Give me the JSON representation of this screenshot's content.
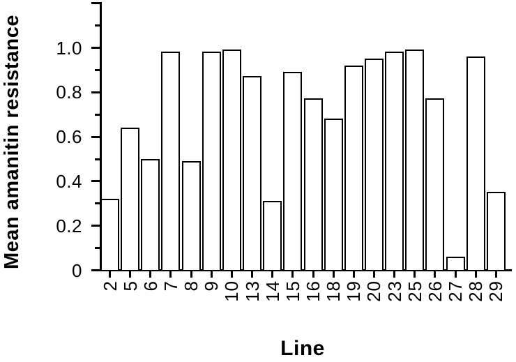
{
  "figure": {
    "background_color": "#ffffff",
    "ink_color": "#000000"
  },
  "chart_data": {
    "type": "bar",
    "title": "",
    "xlabel": "Line",
    "ylabel": "Mean amanitin resistance",
    "categories": [
      "2",
      "5",
      "6",
      "7",
      "8",
      "9",
      "10",
      "13",
      "14",
      "15",
      "16",
      "18",
      "19",
      "20",
      "23",
      "25",
      "26",
      "27",
      "28",
      "29"
    ],
    "values": [
      0.32,
      0.64,
      0.5,
      0.98,
      0.49,
      0.98,
      0.99,
      0.87,
      0.31,
      0.89,
      0.77,
      0.68,
      0.92,
      0.95,
      0.98,
      0.99,
      0.77,
      0.06,
      0.96,
      0.35
    ],
    "ylim": [
      0,
      1.2
    ],
    "y_tick_values": [
      0,
      0.2,
      0.4,
      0.6,
      0.8,
      1.0
    ],
    "y_tick_labels": [
      "0",
      "0.2",
      "0.4",
      "0.6",
      "0.8",
      "1.0"
    ],
    "y_minor_tick_step": 0.1,
    "x_tick_label_rotation_deg": 90,
    "grid": false,
    "legend": null,
    "bar_fill_color": "#ffffff",
    "bar_border_color": "#000000"
  }
}
